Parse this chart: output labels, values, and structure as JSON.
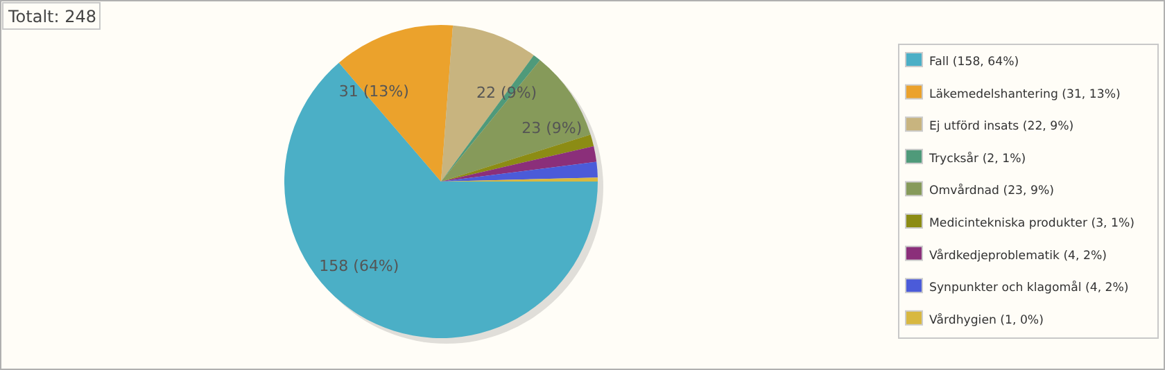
{
  "chart_data": {
    "type": "pie",
    "title": "Totalt: 248",
    "categories": [
      "Fall (158, 64%)",
      "Läkemedelshantering (31, 13%)",
      "Ej utförd insats (22, 9%)",
      "Trycksår (2, 1%)",
      "Omvårdnad (23, 9%)",
      "Medicintekniska produkter (3, 1%)",
      "Vårdkedjeproblematik (4, 2%)",
      "Synpunkter och klagomål (4, 2%)",
      "Vårdhygien (1, 0%)"
    ],
    "values": [
      158,
      31,
      22,
      2,
      23,
      3,
      4,
      4,
      1
    ],
    "colors": [
      "#4bafc6",
      "#eba22c",
      "#c8b47f",
      "#4f9a7a",
      "#869a5a",
      "#8c8c14",
      "#8b2f7a",
      "#4b5bd9",
      "#d8b840"
    ],
    "value_labels": [
      "158 (64%)",
      "31 (13%)",
      "22 (9%)",
      null,
      "23 (9%)",
      null,
      null,
      null,
      null
    ],
    "legend": "right"
  }
}
